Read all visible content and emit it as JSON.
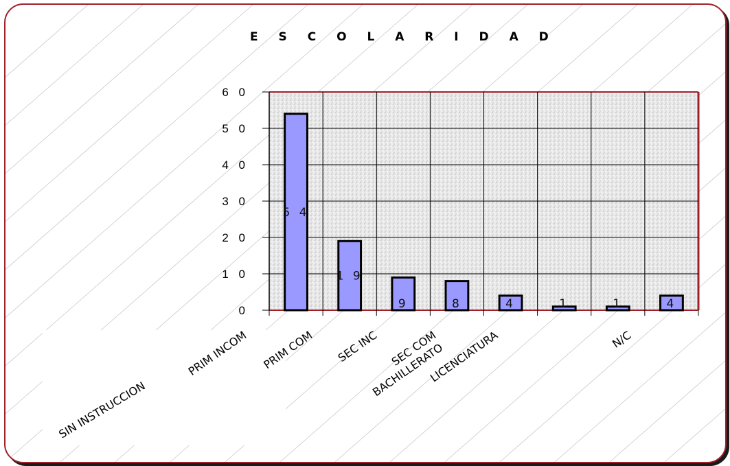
{
  "chart_data": {
    "type": "bar",
    "title": "E S C O L A R I D A D",
    "categories": [
      "SIN INSTRUCCION",
      "PRIM INCOM",
      "PRIM COM",
      "SEC INC",
      "SEC COM",
      "BACHILLERATO",
      "LICENCIATURA",
      "N/C"
    ],
    "tick_labels_shown": [
      "PRIM INCOM",
      "PRIM COM",
      "SEC INC",
      "SEC COM",
      "BACHILLERATO",
      "LICENCIATURA",
      "N/C"
    ],
    "big_label": "SIN INSTRUCCION",
    "values": [
      54,
      19,
      9,
      8,
      4,
      1,
      1,
      4
    ],
    "data_labels": [
      "5 4",
      "1 9",
      "9",
      "8",
      "4",
      "1",
      "1",
      "4"
    ],
    "yticks": [
      0,
      10,
      20,
      30,
      40,
      50,
      60
    ],
    "ytick_labels": [
      "0",
      "1 0",
      "2 0",
      "3 0",
      "4 0",
      "5 0",
      "6 0"
    ],
    "ylim": [
      0,
      60
    ],
    "grid": true,
    "bar_color": "#9999ff",
    "frame_color": "#a0202a"
  }
}
